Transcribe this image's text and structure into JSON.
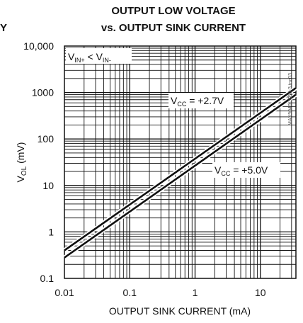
{
  "chart_data": {
    "type": "line",
    "title_line1": "OUTPUT LOW VOLTAGE",
    "title_line2": "vs. OUTPUT SINK CURRENT",
    "clipped_left_text": "Y",
    "xlabel": "OUTPUT SINK CURRENT (mA)",
    "ylabel_main": "V",
    "ylabel_sub": "OL",
    "ylabel_unit": " (mV)",
    "x_scale": "log",
    "y_scale": "log",
    "xlim": [
      0.01,
      35
    ],
    "ylim": [
      0.1,
      10000
    ],
    "x_ticks": [
      {
        "value": 0.01,
        "label": "0.01"
      },
      {
        "value": 0.1,
        "label": "0.1"
      },
      {
        "value": 1,
        "label": "1"
      },
      {
        "value": 10,
        "label": "10"
      }
    ],
    "y_ticks": [
      {
        "value": 0.1,
        "label": "0.1"
      },
      {
        "value": 1,
        "label": "1"
      },
      {
        "value": 10,
        "label": "10"
      },
      {
        "value": 100,
        "label": "100"
      },
      {
        "value": 1000,
        "label": "1000"
      },
      {
        "value": 10000,
        "label": "10,000"
      }
    ],
    "grid": true,
    "condition_label": {
      "a": "V",
      "a_sub": "IN+",
      "op": " < V",
      "b_sub": "IN-"
    },
    "part_number": "MAX9040-3050-3 toc03",
    "series": [
      {
        "name": "VCC = +2.7V",
        "label_main": "V",
        "label_sub": "CC",
        "label_rest": " = +2.7V",
        "x": [
          0.01,
          35
        ],
        "y": [
          0.4,
          1250
        ]
      },
      {
        "name": "VCC = +5.0V",
        "label_main": "V",
        "label_sub": "CC",
        "label_rest": " = +5.0V",
        "x": [
          0.01,
          35
        ],
        "y": [
          0.28,
          900
        ]
      }
    ]
  }
}
